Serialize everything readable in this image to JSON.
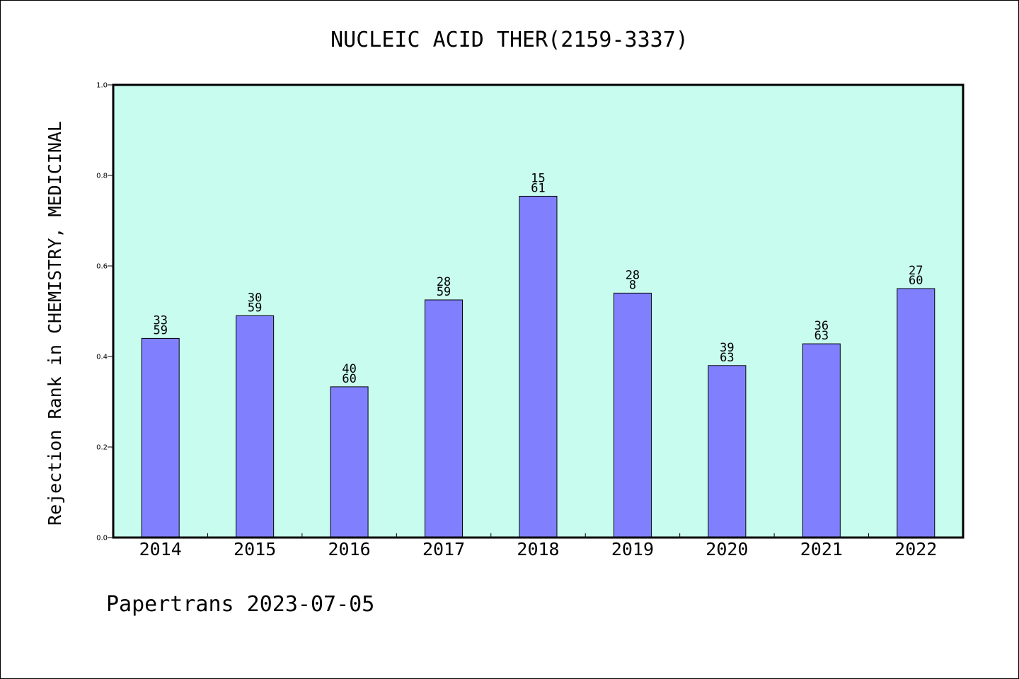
{
  "chart_data": {
    "type": "bar",
    "title": "NUCLEIC ACID THER(2159-3337)",
    "ylabel": "Rejection Rank in CHEMISTRY, MEDICINAL",
    "xlabel": "",
    "ylim": [
      0,
      1.0
    ],
    "yticks": [
      "0.0",
      "0.2",
      "0.4",
      "0.6",
      "0.8",
      "1.0"
    ],
    "categories": [
      "2014",
      "2015",
      "2016",
      "2017",
      "2018",
      "2019",
      "2020",
      "2021",
      "2022"
    ],
    "values": [
      0.44,
      0.49,
      0.333,
      0.525,
      0.754,
      0.54,
      0.38,
      0.428,
      0.55
    ],
    "labels_top": [
      "33",
      "30",
      "40",
      "28",
      "15",
      "28",
      "39",
      "36",
      "27"
    ],
    "labels_bottom": [
      "59",
      "59",
      "60",
      "59",
      "61",
      "8",
      "63",
      "63",
      "60"
    ],
    "grid": false,
    "legend": "none",
    "colors": {
      "bar_fill": "#8080ff",
      "plot_bg": "#c8fcee",
      "bar_stroke": "#000000"
    }
  },
  "footer": {
    "text": "Papertrans 2023-07-05"
  }
}
